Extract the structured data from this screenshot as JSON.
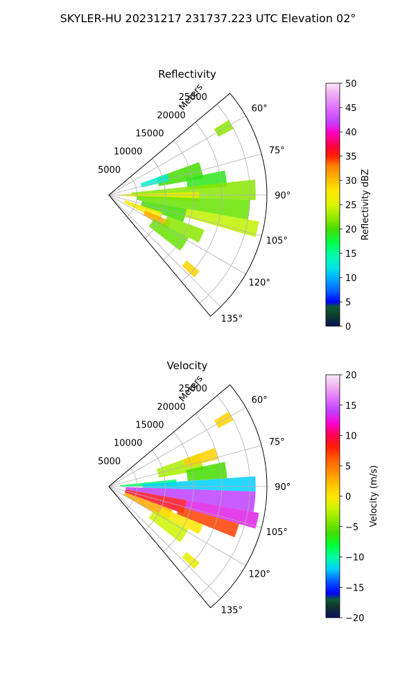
{
  "figure": {
    "suptitle": "SKYLER-HU  20231217  231737.223 UTC Elevation 02°"
  },
  "chart_data": [
    {
      "type": "heatmap",
      "projection": "polar-sector",
      "title": "Reflectivity",
      "field": "reflectivity",
      "radial_label": "Meters",
      "radial_ticks": [
        5000,
        10000,
        15000,
        20000,
        25000
      ],
      "radial_tick_labels": [
        "5000",
        "10000",
        "15000",
        "20000",
        "25000"
      ],
      "rmax": 28000,
      "azimuth_range_deg": [
        50,
        140
      ],
      "azimuth_ticks_deg": [
        60,
        75,
        90,
        105,
        120,
        135
      ],
      "azimuth_tick_labels": [
        "60°",
        "75°",
        "90°",
        "105°",
        "120°",
        "135°"
      ],
      "grid": true,
      "colorbar": {
        "label": "Reflectivity dBZ",
        "vmin": 0,
        "vmax": 50,
        "ticks": [
          0,
          5,
          10,
          15,
          20,
          25,
          30,
          35,
          40,
          45,
          50
        ],
        "tick_labels": [
          "0",
          "5",
          "10",
          "15",
          "20",
          "25",
          "30",
          "35",
          "40",
          "45",
          "50"
        ],
        "colormap": [
          {
            "v": 0,
            "c": "#0b0f5c"
          },
          {
            "v": 2,
            "c": "#0d3a2a"
          },
          {
            "v": 4,
            "c": "#0d5a35"
          },
          {
            "v": 5,
            "c": "#0000ff"
          },
          {
            "v": 7,
            "c": "#005cff"
          },
          {
            "v": 10,
            "c": "#00b0ff"
          },
          {
            "v": 12,
            "c": "#00e5e5"
          },
          {
            "v": 15,
            "c": "#00ffa0"
          },
          {
            "v": 17,
            "c": "#00ff50"
          },
          {
            "v": 20,
            "c": "#44dd00"
          },
          {
            "v": 22,
            "c": "#88e800"
          },
          {
            "v": 25,
            "c": "#ddf500"
          },
          {
            "v": 28,
            "c": "#ffe400"
          },
          {
            "v": 30,
            "c": "#ffc000"
          },
          {
            "v": 33,
            "c": "#ff8000"
          },
          {
            "v": 35,
            "c": "#ff2000"
          },
          {
            "v": 37,
            "c": "#ff0040"
          },
          {
            "v": 40,
            "c": "#ff00c8"
          },
          {
            "v": 42,
            "c": "#c040ff"
          },
          {
            "v": 45,
            "c": "#e070ff"
          },
          {
            "v": 48,
            "c": "#f0b0f0"
          },
          {
            "v": 50,
            "c": "#fce8f8"
          }
        ]
      },
      "echo_regions": [
        {
          "az": [
            58,
            62
          ],
          "r": [
            22000,
            25000
          ],
          "value": 22
        },
        {
          "az": [
            70,
            80
          ],
          "r": [
            9000,
            17000
          ],
          "value": 20
        },
        {
          "az": [
            70,
            77
          ],
          "r": [
            6000,
            11000
          ],
          "value": 13
        },
        {
          "az": [
            78,
            86
          ],
          "r": [
            14000,
            21000
          ],
          "value": 19
        },
        {
          "az": [
            84,
            92
          ],
          "r": [
            4000,
            26000
          ],
          "value": 22
        },
        {
          "az": [
            88,
            94
          ],
          "r": [
            2000,
            16000
          ],
          "value": 26
        },
        {
          "az": [
            92,
            100
          ],
          "r": [
            5000,
            25000
          ],
          "value": 21
        },
        {
          "az": [
            100,
            106
          ],
          "r": [
            14000,
            27000
          ],
          "value": 24
        },
        {
          "az": [
            100,
            110
          ],
          "r": [
            6000,
            14000
          ],
          "value": 20
        },
        {
          "az": [
            108,
            117
          ],
          "r": [
            3000,
            10000
          ],
          "value": 27
        },
        {
          "az": [
            113,
            120
          ],
          "r": [
            7000,
            12000
          ],
          "value": 31
        },
        {
          "az": [
            110,
            118
          ],
          "r": [
            11000,
            18000
          ],
          "value": 22
        },
        {
          "az": [
            118,
            128
          ],
          "r": [
            9000,
            16000
          ],
          "value": 21
        },
        {
          "az": [
            130,
            134
          ],
          "r": [
            18000,
            21000
          ],
          "value": 29
        }
      ]
    },
    {
      "type": "heatmap",
      "projection": "polar-sector",
      "title": "Velocity",
      "field": "velocity",
      "radial_label": "Meters",
      "radial_ticks": [
        5000,
        10000,
        15000,
        20000,
        25000
      ],
      "radial_tick_labels": [
        "5000",
        "10000",
        "15000",
        "20000",
        "25000"
      ],
      "rmax": 28000,
      "azimuth_range_deg": [
        50,
        140
      ],
      "azimuth_ticks_deg": [
        60,
        75,
        90,
        105,
        120,
        135
      ],
      "azimuth_tick_labels": [
        "60°",
        "75°",
        "90°",
        "105°",
        "120°",
        "135°"
      ],
      "grid": true,
      "colorbar": {
        "label": "Velocity (m/s)",
        "vmin": -20,
        "vmax": 20,
        "ticks": [
          -20,
          -15,
          -10,
          -5,
          0,
          5,
          10,
          15,
          20
        ],
        "tick_labels": [
          "−20",
          "−15",
          "−10",
          "−5",
          "0",
          "5",
          "10",
          "15",
          "20"
        ],
        "colormap": [
          {
            "v": -20,
            "c": "#0b0f5c"
          },
          {
            "v": -18,
            "c": "#0d3a2a"
          },
          {
            "v": -17,
            "c": "#0d5a35"
          },
          {
            "v": -16,
            "c": "#0000ff"
          },
          {
            "v": -14,
            "c": "#005cff"
          },
          {
            "v": -12,
            "c": "#00d0ff"
          },
          {
            "v": -10,
            "c": "#00ffa0"
          },
          {
            "v": -8,
            "c": "#00ff30"
          },
          {
            "v": -6,
            "c": "#44dd00"
          },
          {
            "v": -4,
            "c": "#88e800"
          },
          {
            "v": -2,
            "c": "#ccf500"
          },
          {
            "v": 0,
            "c": "#ffe400"
          },
          {
            "v": 2,
            "c": "#ffc000"
          },
          {
            "v": 4,
            "c": "#ff9000"
          },
          {
            "v": 6,
            "c": "#ff6000"
          },
          {
            "v": 8,
            "c": "#ff2000"
          },
          {
            "v": 10,
            "c": "#ff0050"
          },
          {
            "v": 12,
            "c": "#ff00d0"
          },
          {
            "v": 14,
            "c": "#c040ff"
          },
          {
            "v": 16,
            "c": "#e070ff"
          },
          {
            "v": 18,
            "c": "#f0b0f0"
          },
          {
            "v": 20,
            "c": "#fce8f8"
          }
        ]
      },
      "echo_regions": [
        {
          "az": [
            58,
            62
          ],
          "r": [
            22000,
            25000
          ],
          "value": 1
        },
        {
          "az": [
            70,
            80
          ],
          "r": [
            9000,
            17000
          ],
          "value": -3
        },
        {
          "az": [
            70,
            76
          ],
          "r": [
            14000,
            20000
          ],
          "value": 1
        },
        {
          "az": [
            78,
            86
          ],
          "r": [
            14000,
            21000
          ],
          "value": -6
        },
        {
          "az": [
            84,
            90
          ],
          "r": [
            2000,
            12000
          ],
          "value": -9
        },
        {
          "az": [
            86,
            92
          ],
          "r": [
            6000,
            26000
          ],
          "value": -12
        },
        {
          "az": [
            92,
            100
          ],
          "r": [
            3000,
            26000
          ],
          "value": 14
        },
        {
          "az": [
            100,
            106
          ],
          "r": [
            14000,
            27000
          ],
          "value": 13
        },
        {
          "az": [
            100,
            110
          ],
          "r": [
            3000,
            14000
          ],
          "value": 9
        },
        {
          "az": [
            106,
            112
          ],
          "r": [
            13000,
            24000
          ],
          "value": 7
        },
        {
          "az": [
            110,
            120
          ],
          "r": [
            3000,
            12000
          ],
          "value": 3
        },
        {
          "az": [
            112,
            118
          ],
          "r": [
            10000,
            18000
          ],
          "value": 0
        },
        {
          "az": [
            118,
            128
          ],
          "r": [
            9000,
            16000
          ],
          "value": -2
        },
        {
          "az": [
            130,
            134
          ],
          "r": [
            18000,
            21000
          ],
          "value": -1
        }
      ]
    }
  ]
}
